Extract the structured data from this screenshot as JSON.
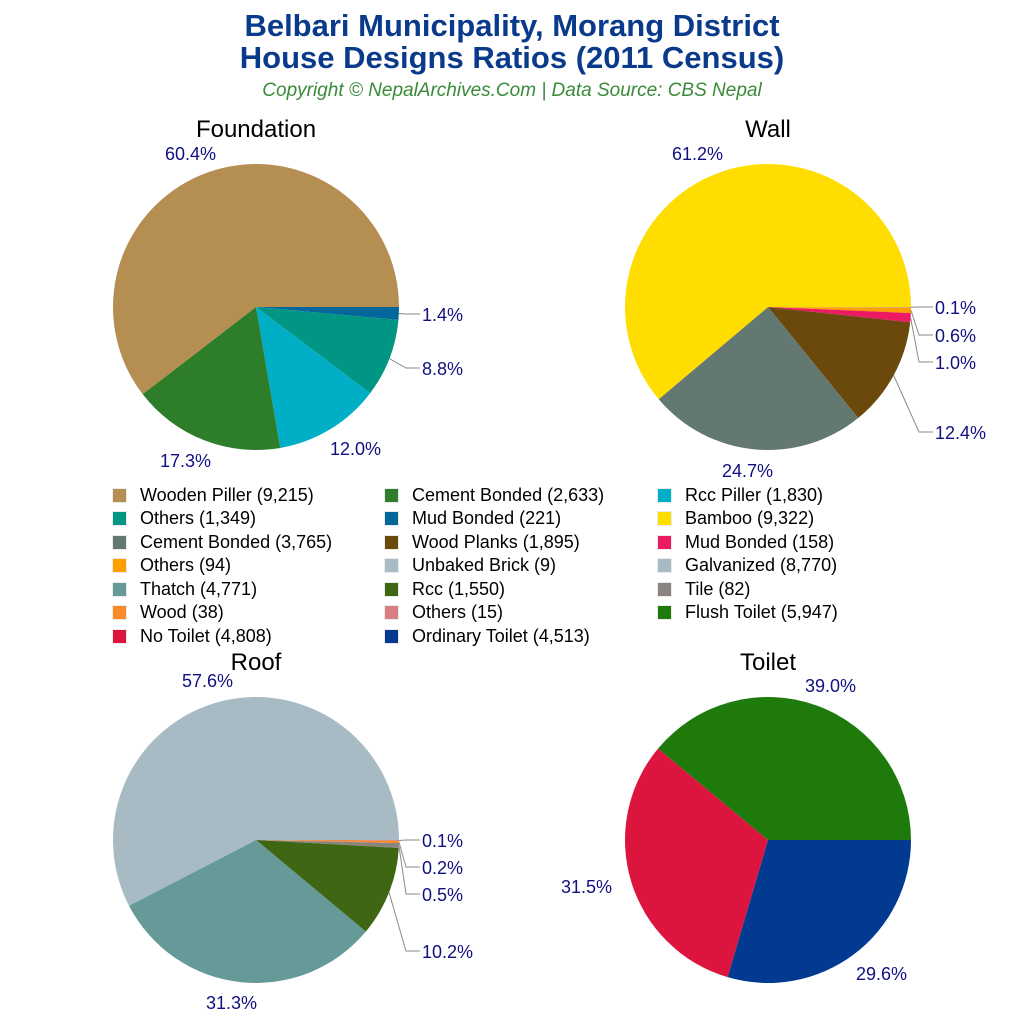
{
  "header": {
    "title_line1": "Belbari Municipality, Morang District",
    "title_line2": "House Designs Ratios (2011 Census)",
    "subtitle": "Copyright © NepalArchives.Com | Data Source: CBS Nepal"
  },
  "legend": [
    {
      "label": "Wooden Piller (9,215)",
      "color": "#b58e52"
    },
    {
      "label": "Cement Bonded (2,633)",
      "color": "#2e7d2b"
    },
    {
      "label": "Rcc Piller (1,830)",
      "color": "#00aec5"
    },
    {
      "label": "Others (1,349)",
      "color": "#009683"
    },
    {
      "label": "Mud Bonded (221)",
      "color": "#03679c"
    },
    {
      "label": "Bamboo (9,322)",
      "color": "#ffdd00"
    },
    {
      "label": "Cement Bonded (3,765)",
      "color": "#627870"
    },
    {
      "label": "Wood Planks (1,895)",
      "color": "#6b490d"
    },
    {
      "label": "Mud Bonded (158)",
      "color": "#eb1a63"
    },
    {
      "label": "Others (94)",
      "color": "#ffa000"
    },
    {
      "label": "Unbaked Brick (9)",
      "color": "#a9bbc4"
    },
    {
      "label": "Galvanized (8,770)",
      "color": "#a8bbc4"
    },
    {
      "label": "Thatch (4,771)",
      "color": "#669a99"
    },
    {
      "label": "Rcc (1,550)",
      "color": "#3f6613"
    },
    {
      "label": "Tile (82)",
      "color": "#8a8481"
    },
    {
      "label": "Wood (38)",
      "color": "#f98a2a"
    },
    {
      "label": "Others (15)",
      "color": "#d88081"
    },
    {
      "label": "Flush Toilet (5,947)",
      "color": "#1f7a0c"
    },
    {
      "label": "No Toilet (4,808)",
      "color": "#dc153f"
    },
    {
      "label": "Ordinary Toilet (4,513)",
      "color": "#023991"
    }
  ],
  "chart_data": [
    {
      "type": "pie",
      "title": "Foundation",
      "categories": [
        "Mud Bonded",
        "Others",
        "Rcc Piller",
        "Cement Bonded",
        "Wooden Piller"
      ],
      "values": [
        221,
        1349,
        1830,
        2633,
        9215
      ],
      "percent_labels": [
        "1.4%",
        "8.8%",
        "12.0%",
        "17.3%",
        "60.4%"
      ],
      "colors": [
        "#03679c",
        "#009683",
        "#00aec5",
        "#2e7d2b",
        "#b58e52"
      ]
    },
    {
      "type": "pie",
      "title": "Wall",
      "categories": [
        "Unbaked Brick",
        "Others",
        "Mud Bonded",
        "Wood Planks",
        "Cement Bonded",
        "Bamboo"
      ],
      "values": [
        9,
        94,
        158,
        1895,
        3765,
        9322
      ],
      "percent_labels": [
        "0.1%",
        "0.6%",
        "1.0%",
        "12.4%",
        "24.7%",
        "61.2%"
      ],
      "colors": [
        "#a9bbc4",
        "#ffa000",
        "#eb1a63",
        "#6b490d",
        "#627870",
        "#ffdd00"
      ]
    },
    {
      "type": "pie",
      "title": "Roof",
      "categories": [
        "Others",
        "Wood",
        "Tile",
        "Rcc",
        "Thatch",
        "Galvanized"
      ],
      "values": [
        15,
        38,
        82,
        1550,
        4771,
        8770
      ],
      "percent_labels": [
        "0.1%",
        "0.2%",
        "0.5%",
        "10.2%",
        "31.3%",
        "57.6%"
      ],
      "colors": [
        "#d88081",
        "#f98a2a",
        "#8a8481",
        "#3f6613",
        "#669a99",
        "#a8bbc4"
      ]
    },
    {
      "type": "pie",
      "title": "Toilet",
      "categories": [
        "Ordinary Toilet",
        "No Toilet",
        "Flush Toilet"
      ],
      "values": [
        4513,
        4808,
        5947
      ],
      "percent_labels": [
        "29.6%",
        "31.5%",
        "39.0%"
      ],
      "colors": [
        "#023991",
        "#dc153f",
        "#1f7a0c"
      ]
    }
  ]
}
